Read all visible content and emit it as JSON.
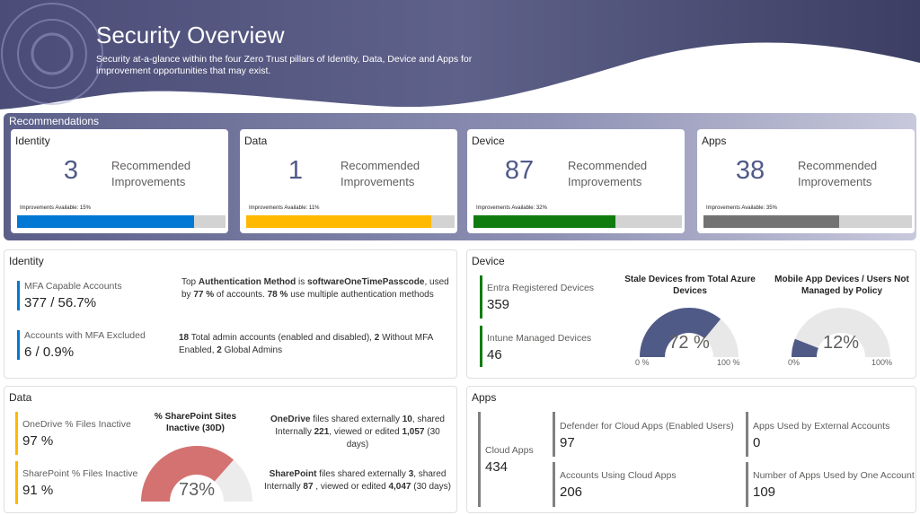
{
  "header": {
    "title": "Security Overview",
    "subtitle": "Security at-a-glance within the four Zero Trust pillars of Identity, Data, Device and Apps for improvement opportunities that may exist."
  },
  "recommendations": {
    "title": "Recommendations",
    "label": "Recommended Improvements",
    "cards": [
      {
        "name": "Identity",
        "count": "3",
        "improvements": "Improvements Available: 15%",
        "fill_pct": 85,
        "color": "#0078d4"
      },
      {
        "name": "Data",
        "count": "1",
        "improvements": "Improvements Available: 11%",
        "fill_pct": 89,
        "color": "#ffb900"
      },
      {
        "name": "Device",
        "count": "87",
        "improvements": "Improvements Available: 32%",
        "fill_pct": 68,
        "color": "#107c10"
      },
      {
        "name": "Apps",
        "count": "38",
        "improvements": "Improvements Available: 35%",
        "fill_pct": 65,
        "color": "#737373"
      }
    ]
  },
  "identity": {
    "title": "Identity",
    "mfa_capable_label": "MFA Capable Accounts",
    "mfa_capable_value": "377 / 56.7%",
    "mfa_excluded_label": "Accounts with MFA Excluded",
    "mfa_excluded_value": "6 / 0.9%",
    "auth": {
      "t1": "Top ",
      "b1": "Authentication Method",
      "t2": " is ",
      "b2": "softwareOneTimePasscode",
      "t3": ", used by ",
      "b3": "77 %",
      "t4": " of accounts. ",
      "b4": "78 %",
      "t5": " use multiple authentication methods"
    },
    "admin": {
      "b1": "18",
      "t1": " Total admin accounts (enabled and disabled), ",
      "b2": "2",
      "t2": " Without MFA Enabled, ",
      "b3": "2",
      "t3": " Global Admins"
    },
    "accent": "#0078d4"
  },
  "device": {
    "title": "Device",
    "entra_label": "Entra Registered Devices",
    "entra_value": "359",
    "intune_label": "Intune Managed Devices",
    "intune_value": "46",
    "accent": "#107c10",
    "gauge1": {
      "title": "Stale Devices from Total Azure Devices",
      "value": "72 %",
      "fraction": 0.72,
      "min": "0 %",
      "max": "100 %",
      "color": "#505a87"
    },
    "gauge2": {
      "title": "Mobile App Devices / Users Not Managed by Policy",
      "value": "12%",
      "fraction": 0.12,
      "min": "0%",
      "max": "100%",
      "color": "#505a87"
    }
  },
  "data": {
    "title": "Data",
    "onedrive_label": "OneDrive % Files Inactive",
    "onedrive_value": "97 %",
    "sharepoint_label": "SharePoint % Files Inactive",
    "sharepoint_value": "91 %",
    "accent": "#ffb900",
    "gauge": {
      "title": "% SharePoint Sites Inactive (30D)",
      "value": "73%",
      "fraction": 0.73,
      "color": "#d47272"
    },
    "onedrive_note": {
      "b1": "OneDrive",
      "t1": " files shared externally ",
      "b2": "10",
      "t2": ", shared Internally ",
      "b3": "221",
      "t3": ", viewed or edited ",
      "b4": "1,057",
      "t4": " (30 days)"
    },
    "sharepoint_note": {
      "b1": "SharePoint",
      "t1": " files shared externally ",
      "b2": "3",
      "t2": ", shared Internally ",
      "b3": "87",
      "t3": " , viewed or edited ",
      "b4": "4,047",
      "t4": " (30 days)"
    }
  },
  "apps": {
    "title": "Apps",
    "accent": "#737373",
    "cloud_label": "Cloud Apps",
    "cloud_value": "434",
    "defender_label": "Defender for Cloud Apps (Enabled Users)",
    "defender_value": "97",
    "external_label": "Apps Used by External Accounts",
    "external_value": "0",
    "using_label": "Accounts Using Cloud Apps",
    "using_value": "206",
    "one_account_label": "Number of Apps Used by One Account",
    "one_account_value": "109"
  }
}
